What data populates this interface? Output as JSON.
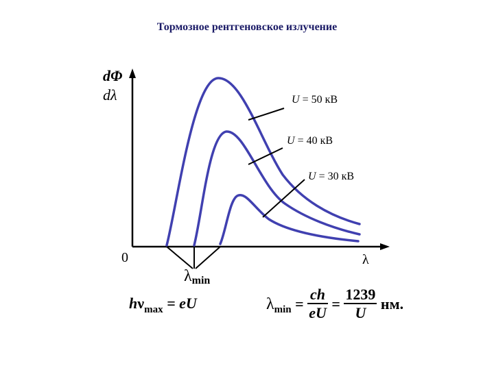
{
  "title": "Тормозное рентгеновское излучение",
  "y_axis": {
    "top": "dΦ",
    "bottom": "dλ"
  },
  "x_axis": {
    "label": "λ",
    "origin": "0"
  },
  "curves": [
    {
      "label_symbol": "U",
      "label_rest": " = 50 кВ"
    },
    {
      "label_symbol": "U",
      "label_rest": " = 40 кВ"
    },
    {
      "label_symbol": "U",
      "label_rest": " = 30 кВ"
    }
  ],
  "lambda_min_label": {
    "symbol": "λ",
    "sub": "min"
  },
  "formula1": {
    "h": "h",
    "nu": "ν",
    "sub": "max",
    "rhs": " = eU"
  },
  "formula2": {
    "lambda": "λ",
    "sub": "min",
    "eq1": " = ",
    "num1": "ch",
    "den1": "eU",
    "eq2": " = ",
    "num2": "1239",
    "den2": "U",
    "unit": " нм."
  },
  "colors": {
    "curve": "#4040b0",
    "axis": "#000000",
    "title": "#1a1a66"
  }
}
